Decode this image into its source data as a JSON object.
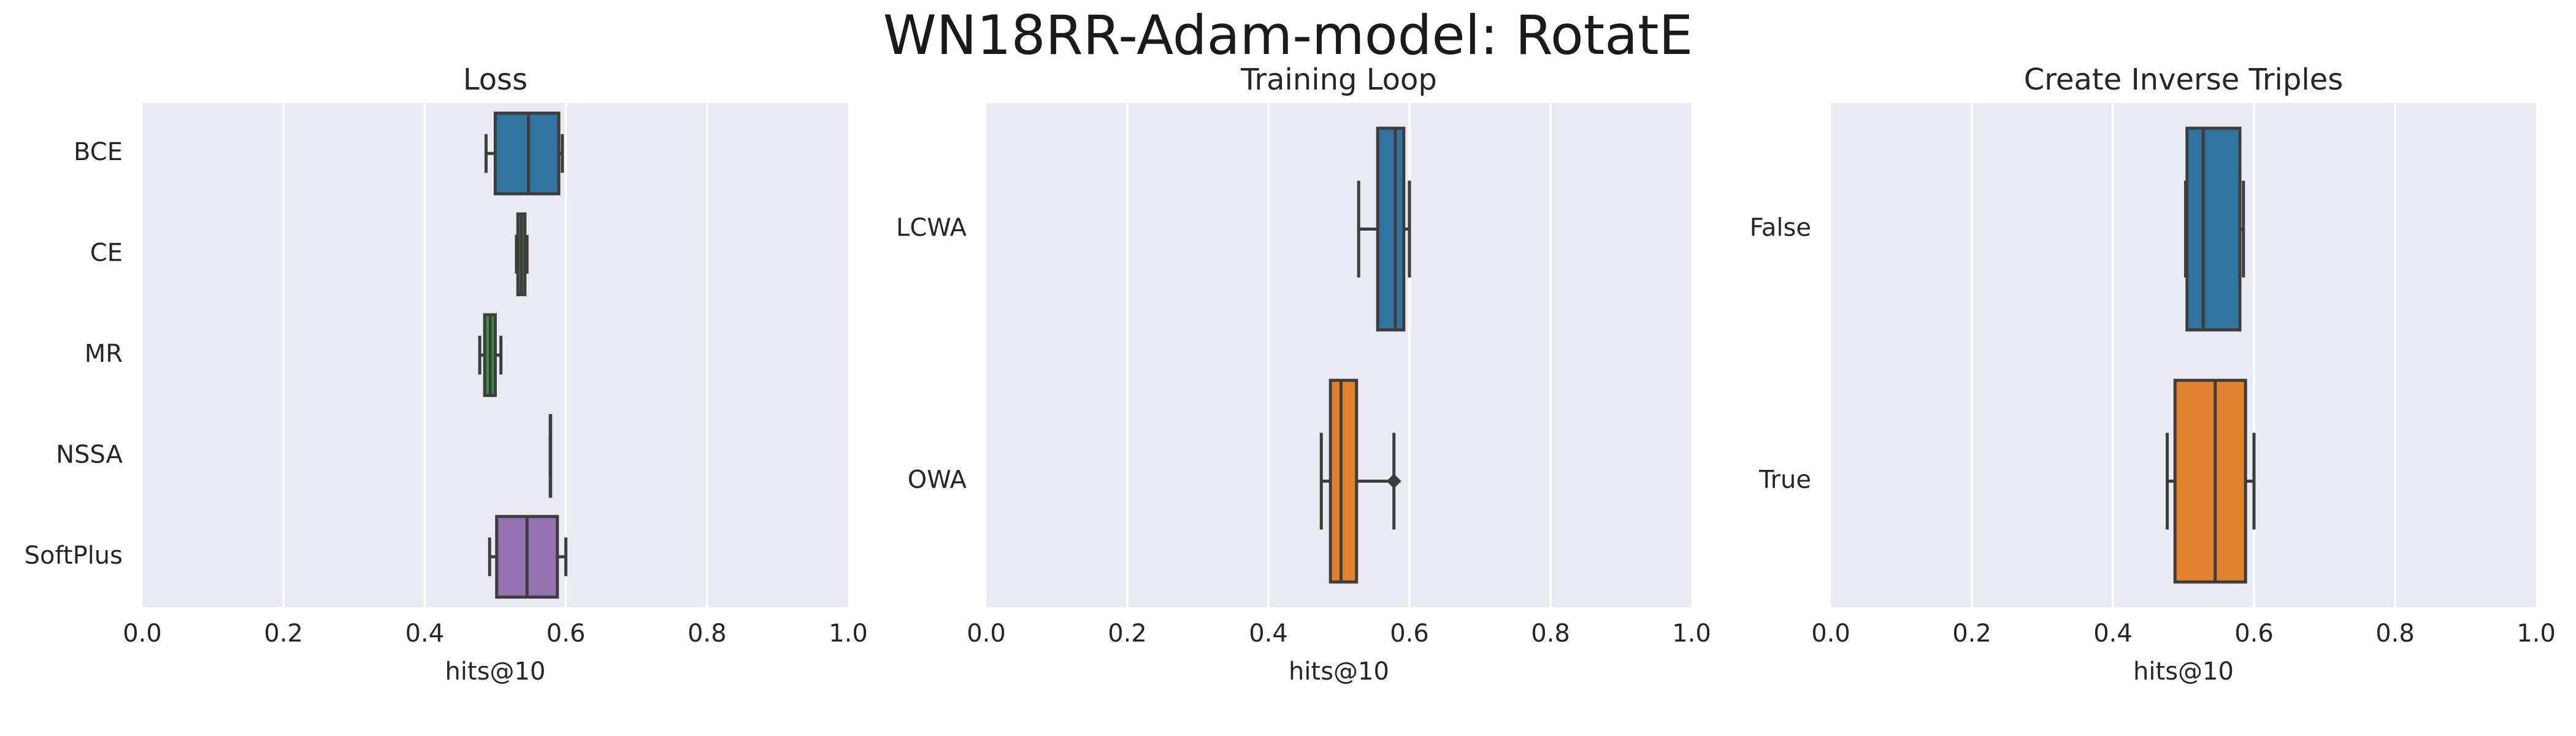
{
  "suptitle": "WN18RR-Adam-model: RotatE",
  "chart_data": [
    {
      "type": "box",
      "orientation": "horizontal",
      "title": "Loss",
      "xlabel": "hits@10",
      "xlim": [
        0.0,
        1.0
      ],
      "xticks": [
        "0.0",
        "0.2",
        "0.4",
        "0.6",
        "0.8",
        "1.0"
      ],
      "grid": true,
      "categories": [
        "BCE",
        "CE",
        "MR",
        "NSSA",
        "SoftPlus"
      ],
      "colors": [
        "#3274a1",
        "#3a923a",
        "#3a923a",
        "#c03d3e",
        "#9372b2"
      ],
      "boxes": [
        {
          "whislo": 0.487,
          "q1": 0.5,
          "med": 0.547,
          "q3": 0.59,
          "whishi": 0.595,
          "fliers": []
        },
        {
          "whislo": 0.53,
          "q1": 0.532,
          "med": 0.537,
          "q3": 0.542,
          "whishi": 0.545,
          "fliers": []
        },
        {
          "whislo": 0.478,
          "q1": 0.485,
          "med": 0.493,
          "q3": 0.5,
          "whishi": 0.508,
          "fliers": []
        },
        {
          "whislo": 0.578,
          "q1": 0.578,
          "med": 0.578,
          "q3": 0.578,
          "whishi": 0.578,
          "fliers": []
        },
        {
          "whislo": 0.492,
          "q1": 0.502,
          "med": 0.545,
          "q3": 0.588,
          "whishi": 0.6,
          "fliers": []
        }
      ]
    },
    {
      "type": "box",
      "orientation": "horizontal",
      "title": "Training Loop",
      "xlabel": "hits@10",
      "xlim": [
        0.0,
        1.0
      ],
      "xticks": [
        "0.0",
        "0.2",
        "0.4",
        "0.6",
        "0.8",
        "1.0"
      ],
      "grid": true,
      "categories": [
        "LCWA",
        "OWA"
      ],
      "colors": [
        "#3274a1",
        "#e1812c"
      ],
      "boxes": [
        {
          "whislo": 0.528,
          "q1": 0.555,
          "med": 0.58,
          "q3": 0.592,
          "whishi": 0.6,
          "fliers": []
        },
        {
          "whislo": 0.475,
          "q1": 0.488,
          "med": 0.503,
          "q3": 0.525,
          "whishi": 0.578,
          "fliers": [
            0.578
          ]
        }
      ]
    },
    {
      "type": "box",
      "orientation": "horizontal",
      "title": "Create Inverse Triples",
      "xlabel": "hits@10",
      "xlim": [
        0.0,
        1.0
      ],
      "xticks": [
        "0.0",
        "0.2",
        "0.4",
        "0.6",
        "0.8",
        "1.0"
      ],
      "grid": true,
      "categories": [
        "False",
        "True"
      ],
      "colors": [
        "#3274a1",
        "#e1812c"
      ],
      "boxes": [
        {
          "whislo": 0.503,
          "q1": 0.505,
          "med": 0.528,
          "q3": 0.58,
          "whishi": 0.585,
          "fliers": []
        },
        {
          "whislo": 0.477,
          "q1": 0.488,
          "med": 0.545,
          "q3": 0.588,
          "whishi": 0.6,
          "fliers": []
        }
      ]
    }
  ]
}
